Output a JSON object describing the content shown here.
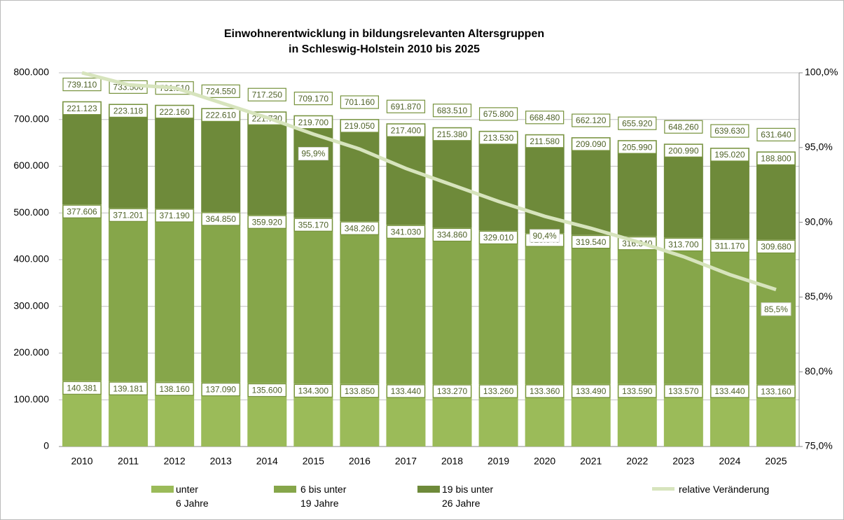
{
  "chart_data": {
    "type": "bar",
    "stacked": true,
    "title": "Einwohnerentwicklung in bildungsrelevanten Altersgruppen\nin Schleswig-Holstein 2010 bis 2025",
    "categories": [
      "2010",
      "2011",
      "2012",
      "2013",
      "2014",
      "2015",
      "2016",
      "2017",
      "2018",
      "2019",
      "2020",
      "2021",
      "2022",
      "2023",
      "2024",
      "2025"
    ],
    "series": [
      {
        "name": "unter\n6 Jahre",
        "color": "#9bbb59",
        "values": [
          140381,
          139181,
          138160,
          137090,
          135600,
          134300,
          133850,
          133440,
          133270,
          133260,
          133360,
          133490,
          133590,
          133570,
          133440,
          133160
        ],
        "value_labels": [
          "140.381",
          "139.181",
          "138.160",
          "137.090",
          "135.600",
          "134.300",
          "133.850",
          "133.440",
          "133.270",
          "133.260",
          "133.360",
          "133.490",
          "133.590",
          "133.570",
          "133.440",
          "133.160"
        ]
      },
      {
        "name": "6 bis unter\n19 Jahre",
        "color": "#86a64a",
        "values": [
          377606,
          371201,
          371190,
          364850,
          359920,
          355170,
          348260,
          341030,
          334860,
          329010,
          323540,
          319540,
          316340,
          313700,
          311170,
          309680
        ],
        "value_labels": [
          "377.606",
          "371.201",
          "371.190",
          "364.850",
          "359.920",
          "355.170",
          "348.260",
          "341.030",
          "334.860",
          "329.010",
          "323.540",
          "319.540",
          "316.340",
          "313.700",
          "311.170",
          "309.680"
        ]
      },
      {
        "name": "19 bis unter\n26 Jahre",
        "color": "#6e8a3a",
        "values": [
          221123,
          223118,
          222160,
          222610,
          221730,
          219700,
          219050,
          217400,
          215380,
          213530,
          211580,
          209090,
          205990,
          200990,
          195020,
          188800
        ],
        "value_labels": [
          "221.123",
          "223.118",
          "222.160",
          "222.610",
          "221.730",
          "219.700",
          "219.050",
          "217.400",
          "215.380",
          "213.530",
          "211.580",
          "209.090",
          "205.990",
          "200.990",
          "195.020",
          "188.800"
        ]
      },
      {
        "name": "relative Veränderung",
        "color": "#d7e4bd",
        "type": "line",
        "axis": "y2",
        "values": [
          100,
          99.2,
          99,
          98,
          97,
          95.9,
          94.9,
          93.6,
          92.5,
          91.4,
          90.4,
          89.6,
          88.7,
          87.7,
          86.5,
          85.5
        ],
        "value_labels": [
          null,
          null,
          null,
          null,
          null,
          "95,9%",
          null,
          null,
          null,
          null,
          "90,4%",
          null,
          null,
          null,
          null,
          "85,5%"
        ]
      }
    ],
    "totals": {
      "values": [
        739110,
        733500,
        731510,
        724550,
        717250,
        709170,
        701160,
        691870,
        683510,
        675800,
        668480,
        662120,
        655920,
        648260,
        639630,
        631640
      ],
      "value_labels": [
        "739.110",
        "733.500",
        "731.510",
        "724.550",
        "717.250",
        "709.170",
        "701.160",
        "691.870",
        "683.510",
        "675.800",
        "668.480",
        "662.120",
        "655.920",
        "648.260",
        "639.630",
        "631.640"
      ]
    },
    "ylim": [
      0,
      800000
    ],
    "yticks": [
      0,
      {
        "value": 100000,
        "label": "100.000"
      },
      {
        "value": 200000,
        "label": "200.000"
      },
      {
        "value": 300000,
        "label": "300.000"
      },
      {
        "value": 400000,
        "label": "400.000"
      },
      {
        "value": 500000,
        "label": "500.000"
      },
      {
        "value": 600000,
        "label": "600.000"
      },
      {
        "value": 700000,
        "label": "700.000"
      },
      {
        "value": 800000,
        "label": "800.000"
      }
    ],
    "y2lim": [
      75,
      100
    ],
    "y2ticks": [
      {
        "value": 75,
        "label": "75,0%"
      },
      {
        "value": 80,
        "label": "80,0%"
      },
      {
        "value": 85,
        "label": "85,0%"
      },
      {
        "value": 90,
        "label": "90,0%"
      },
      {
        "value": 95,
        "label": "95,0%"
      },
      {
        "value": 100,
        "label": "100,0%"
      }
    ],
    "grid": true
  }
}
